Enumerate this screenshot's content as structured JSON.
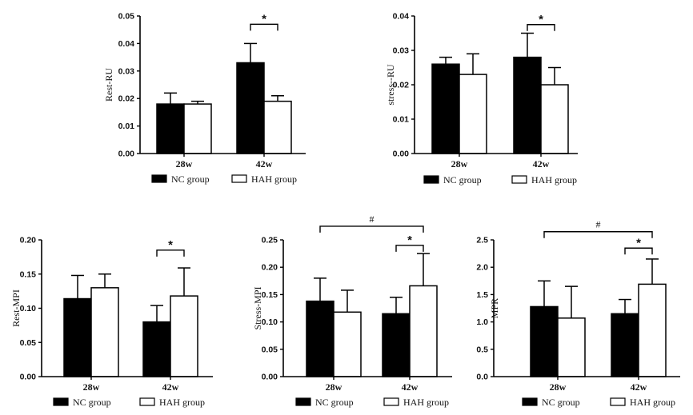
{
  "chart_data": [
    {
      "type": "bar",
      "ylabel": "Rest-RU",
      "ylim": [
        0,
        0.05
      ],
      "yticks": [
        "0.00",
        "0.01",
        "0.02",
        "0.03",
        "0.04",
        "0.05"
      ],
      "categories": [
        "28w",
        "42w"
      ],
      "series": [
        {
          "name": "NC group",
          "color": "#000000",
          "values": [
            0.018,
            0.033
          ],
          "errors": [
            0.004,
            0.007
          ]
        },
        {
          "name": "HAH group",
          "color": "#ffffff",
          "values": [
            0.018,
            0.019
          ],
          "errors": [
            0.001,
            0.002
          ]
        }
      ],
      "annotations": [
        {
          "symbol": "*",
          "from": [
            1,
            0
          ],
          "to": [
            1,
            1
          ],
          "level": 0.047
        }
      ]
    },
    {
      "type": "bar",
      "ylabel": "stress--RU",
      "ylim": [
        0,
        0.04
      ],
      "yticks": [
        "0.00",
        "0.01",
        "0.02",
        "0.03",
        "0.04"
      ],
      "categories": [
        "28w",
        "42w"
      ],
      "series": [
        {
          "name": "NC group",
          "color": "#000000",
          "values": [
            0.026,
            0.028
          ],
          "errors": [
            0.002,
            0.007
          ]
        },
        {
          "name": "HAH group",
          "color": "#ffffff",
          "values": [
            0.023,
            0.02
          ],
          "errors": [
            0.006,
            0.005
          ]
        }
      ],
      "annotations": [
        {
          "symbol": "*",
          "from": [
            1,
            0
          ],
          "to": [
            1,
            1
          ],
          "level": 0.0375
        }
      ]
    },
    {
      "type": "bar",
      "ylabel": "Rest-MPI",
      "ylim": [
        0,
        0.2
      ],
      "yticks": [
        "0.00",
        "0.05",
        "0.10",
        "0.15",
        "0.20"
      ],
      "categories": [
        "28w",
        "42w"
      ],
      "series": [
        {
          "name": "NC group",
          "color": "#000000",
          "values": [
            0.114,
            0.08
          ],
          "errors": [
            0.034,
            0.024
          ]
        },
        {
          "name": "HAH group",
          "color": "#ffffff",
          "values": [
            0.13,
            0.118
          ],
          "errors": [
            0.02,
            0.041
          ]
        }
      ],
      "annotations": [
        {
          "symbol": "*",
          "from": [
            1,
            0
          ],
          "to": [
            1,
            1
          ],
          "level": 0.185
        }
      ]
    },
    {
      "type": "bar",
      "ylabel": "Stress-MPI",
      "ylim": [
        0,
        0.25
      ],
      "yticks": [
        "0.00",
        "0.05",
        "0.10",
        "0.15",
        "0.20",
        "0.25"
      ],
      "categories": [
        "28w",
        "42w"
      ],
      "series": [
        {
          "name": "NC group",
          "color": "#000000",
          "values": [
            0.138,
            0.115
          ],
          "errors": [
            0.042,
            0.03
          ]
        },
        {
          "name": "HAH group",
          "color": "#ffffff",
          "values": [
            0.118,
            0.166
          ],
          "errors": [
            0.04,
            0.059
          ]
        }
      ],
      "annotations": [
        {
          "symbol": "*",
          "from": [
            1,
            0
          ],
          "to": [
            1,
            1
          ],
          "level": 0.24
        },
        {
          "symbol": "#",
          "from": [
            0,
            0
          ],
          "to": [
            1,
            1
          ],
          "level": 0.275
        }
      ]
    },
    {
      "type": "bar",
      "ylabel": "MPR",
      "ylim": [
        0,
        2.5
      ],
      "yticks": [
        "0.0",
        "0.5",
        "1.0",
        "1.5",
        "2.0",
        "2.5"
      ],
      "categories": [
        "28w",
        "42w"
      ],
      "series": [
        {
          "name": "NC group",
          "color": "#000000",
          "values": [
            1.28,
            1.15
          ],
          "errors": [
            0.47,
            0.26
          ]
        },
        {
          "name": "HAH group",
          "color": "#ffffff",
          "values": [
            1.07,
            1.69
          ],
          "errors": [
            0.58,
            0.46
          ]
        }
      ],
      "annotations": [
        {
          "symbol": "*",
          "from": [
            1,
            0
          ],
          "to": [
            1,
            1
          ],
          "level": 2.35
        },
        {
          "symbol": "#",
          "from": [
            0,
            0
          ],
          "to": [
            1,
            1
          ],
          "level": 2.65
        }
      ]
    }
  ],
  "legend": {
    "nc_label": "NC group",
    "hah_label": "HAH group"
  }
}
